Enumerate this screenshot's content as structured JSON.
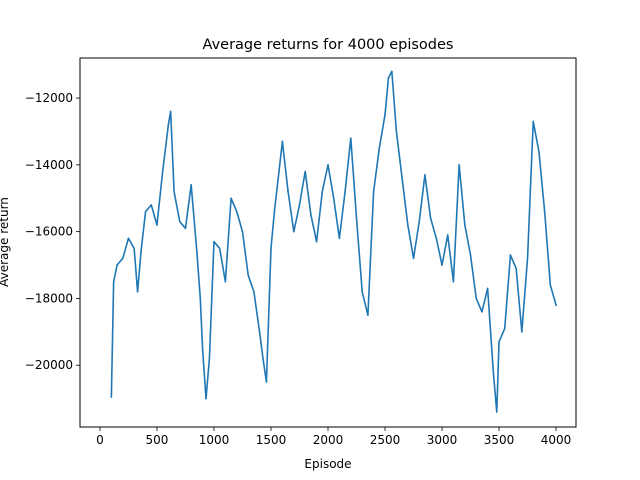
{
  "chart_data": {
    "type": "line",
    "title": "Average returns for 4000 episodes",
    "xlabel": "Episode",
    "ylabel": "Average return",
    "xlim": [
      -175,
      4175
    ],
    "ylim": [
      -21850,
      -10800
    ],
    "xticks": [
      0,
      500,
      1000,
      1500,
      2000,
      2500,
      3000,
      3500,
      4000
    ],
    "xtick_labels": [
      "0",
      "500",
      "1000",
      "1500",
      "2000",
      "2500",
      "3000",
      "3500",
      "4000"
    ],
    "yticks": [
      -20000,
      -18000,
      -16000,
      -14000,
      -12000
    ],
    "ytick_labels": [
      "−20000",
      "−18000",
      "−16000",
      "−14000",
      "−12000"
    ],
    "grid": false,
    "line_color": "#1f77b4",
    "series": [
      {
        "x": [
          100,
          120,
          150,
          200,
          250,
          300,
          330,
          360,
          400,
          450,
          500,
          550,
          600,
          620,
          650,
          700,
          750,
          800,
          850,
          880,
          900,
          930,
          960,
          1000,
          1050,
          1100,
          1150,
          1200,
          1250,
          1300,
          1350,
          1400,
          1430,
          1460,
          1500,
          1530,
          1560,
          1600,
          1650,
          1700,
          1750,
          1800,
          1850,
          1900,
          1950,
          2000,
          2050,
          2100,
          2150,
          2200,
          2250,
          2300,
          2350,
          2400,
          2450,
          2500,
          2530,
          2560,
          2600,
          2650,
          2700,
          2750,
          2800,
          2850,
          2900,
          2950,
          3000,
          3050,
          3100,
          3150,
          3200,
          3250,
          3300,
          3350,
          3400,
          3450,
          3480,
          3500,
          3550,
          3600,
          3650,
          3700,
          3750,
          3800,
          3850,
          3900,
          3950,
          4000
        ],
        "y": [
          -20950,
          -17500,
          -17000,
          -16800,
          -16200,
          -16500,
          -17800,
          -16600,
          -15400,
          -15200,
          -15800,
          -14200,
          -12800,
          -12400,
          -14800,
          -15700,
          -15900,
          -14600,
          -16600,
          -18000,
          -19500,
          -21000,
          -19800,
          -16300,
          -16500,
          -17500,
          -15000,
          -15400,
          -16000,
          -17300,
          -17800,
          -19000,
          -19800,
          -20500,
          -16500,
          -15400,
          -14500,
          -13300,
          -14800,
          -16000,
          -15200,
          -14200,
          -15500,
          -16300,
          -14800,
          -14000,
          -15000,
          -16200,
          -14800,
          -13200,
          -15600,
          -17800,
          -18500,
          -14800,
          -13500,
          -12500,
          -11400,
          -11200,
          -13000,
          -14400,
          -15800,
          -16800,
          -15700,
          -14300,
          -15600,
          -16200,
          -17000,
          -16100,
          -17500,
          -14000,
          -15800,
          -16700,
          -18000,
          -18400,
          -17700,
          -20200,
          -21400,
          -19300,
          -18900,
          -16700,
          -17100,
          -19000,
          -16800,
          -12700,
          -13600,
          -15400,
          -17600,
          -18200
        ]
      }
    ]
  }
}
